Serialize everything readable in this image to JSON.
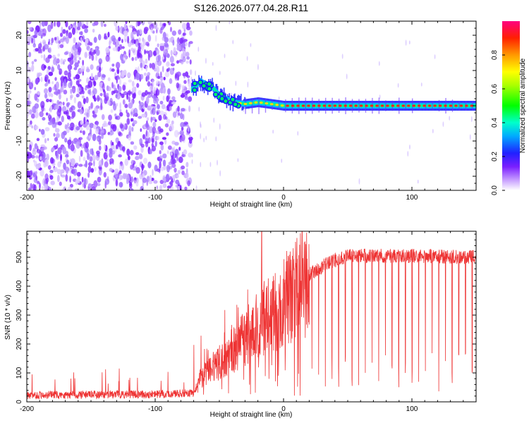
{
  "figure": {
    "title": "S126.2026.077.04.28.R11"
  },
  "chart_data": [
    {
      "type": "heatmap",
      "name": "spectrogram",
      "title": "S126.2026.077.04.28.R11",
      "xlabel": "Height of straight line (km)",
      "ylabel": "Frequency (Hz)",
      "xlim": [
        -200,
        150
      ],
      "ylim": [
        -24,
        24
      ],
      "xticks": [
        -200,
        -100,
        0,
        100
      ],
      "yticks": [
        -20,
        -10,
        0,
        10,
        20
      ],
      "noise_region_x": [
        -200,
        -72
      ],
      "transition_region_x": [
        -72,
        -30
      ],
      "carrier_track": [
        {
          "x": -75,
          "y": 4
        },
        {
          "x": -70,
          "y": 5
        },
        {
          "x": -65,
          "y": 7
        },
        {
          "x": -60,
          "y": 6
        },
        {
          "x": -55,
          "y": 5
        },
        {
          "x": -50,
          "y": 3
        },
        {
          "x": -45,
          "y": 2
        },
        {
          "x": -40,
          "y": 1
        },
        {
          "x": -30,
          "y": 0.5
        },
        {
          "x": -20,
          "y": 1
        },
        {
          "x": -10,
          "y": 0.5
        },
        {
          "x": 0,
          "y": 0
        },
        {
          "x": 150,
          "y": 0
        }
      ],
      "colorbar": {
        "label": "Normalized spectral amplitude",
        "range": [
          0,
          1
        ],
        "ticks": [
          "0.0",
          "0.2",
          "0.4",
          "0.6",
          "0.8"
        ]
      }
    },
    {
      "type": "line",
      "name": "snr",
      "xlabel": "Height of straight line (km)",
      "ylabel": "SNR (10 * v/v)",
      "xlim": [
        -200,
        150
      ],
      "ylim": [
        0,
        590
      ],
      "xticks": [
        -200,
        -100,
        0,
        100
      ],
      "yticks": [
        0,
        100,
        200,
        300,
        400,
        500
      ],
      "series_color": "#ee3333",
      "profile": [
        {
          "x": -200,
          "y": 22
        },
        {
          "x": -180,
          "y": 24
        },
        {
          "x": -150,
          "y": 25
        },
        {
          "x": -100,
          "y": 26
        },
        {
          "x": -70,
          "y": 30
        },
        {
          "x": -65,
          "y": 80
        },
        {
          "x": -55,
          "y": 120
        },
        {
          "x": -45,
          "y": 150
        },
        {
          "x": -30,
          "y": 220
        },
        {
          "x": -15,
          "y": 290
        },
        {
          "x": 0,
          "y": 330
        },
        {
          "x": 10,
          "y": 390
        },
        {
          "x": 20,
          "y": 440
        },
        {
          "x": 35,
          "y": 480
        },
        {
          "x": 50,
          "y": 505
        },
        {
          "x": 100,
          "y": 505
        },
        {
          "x": 150,
          "y": 500
        }
      ],
      "peak": {
        "x": -17,
        "y": 590
      }
    }
  ]
}
